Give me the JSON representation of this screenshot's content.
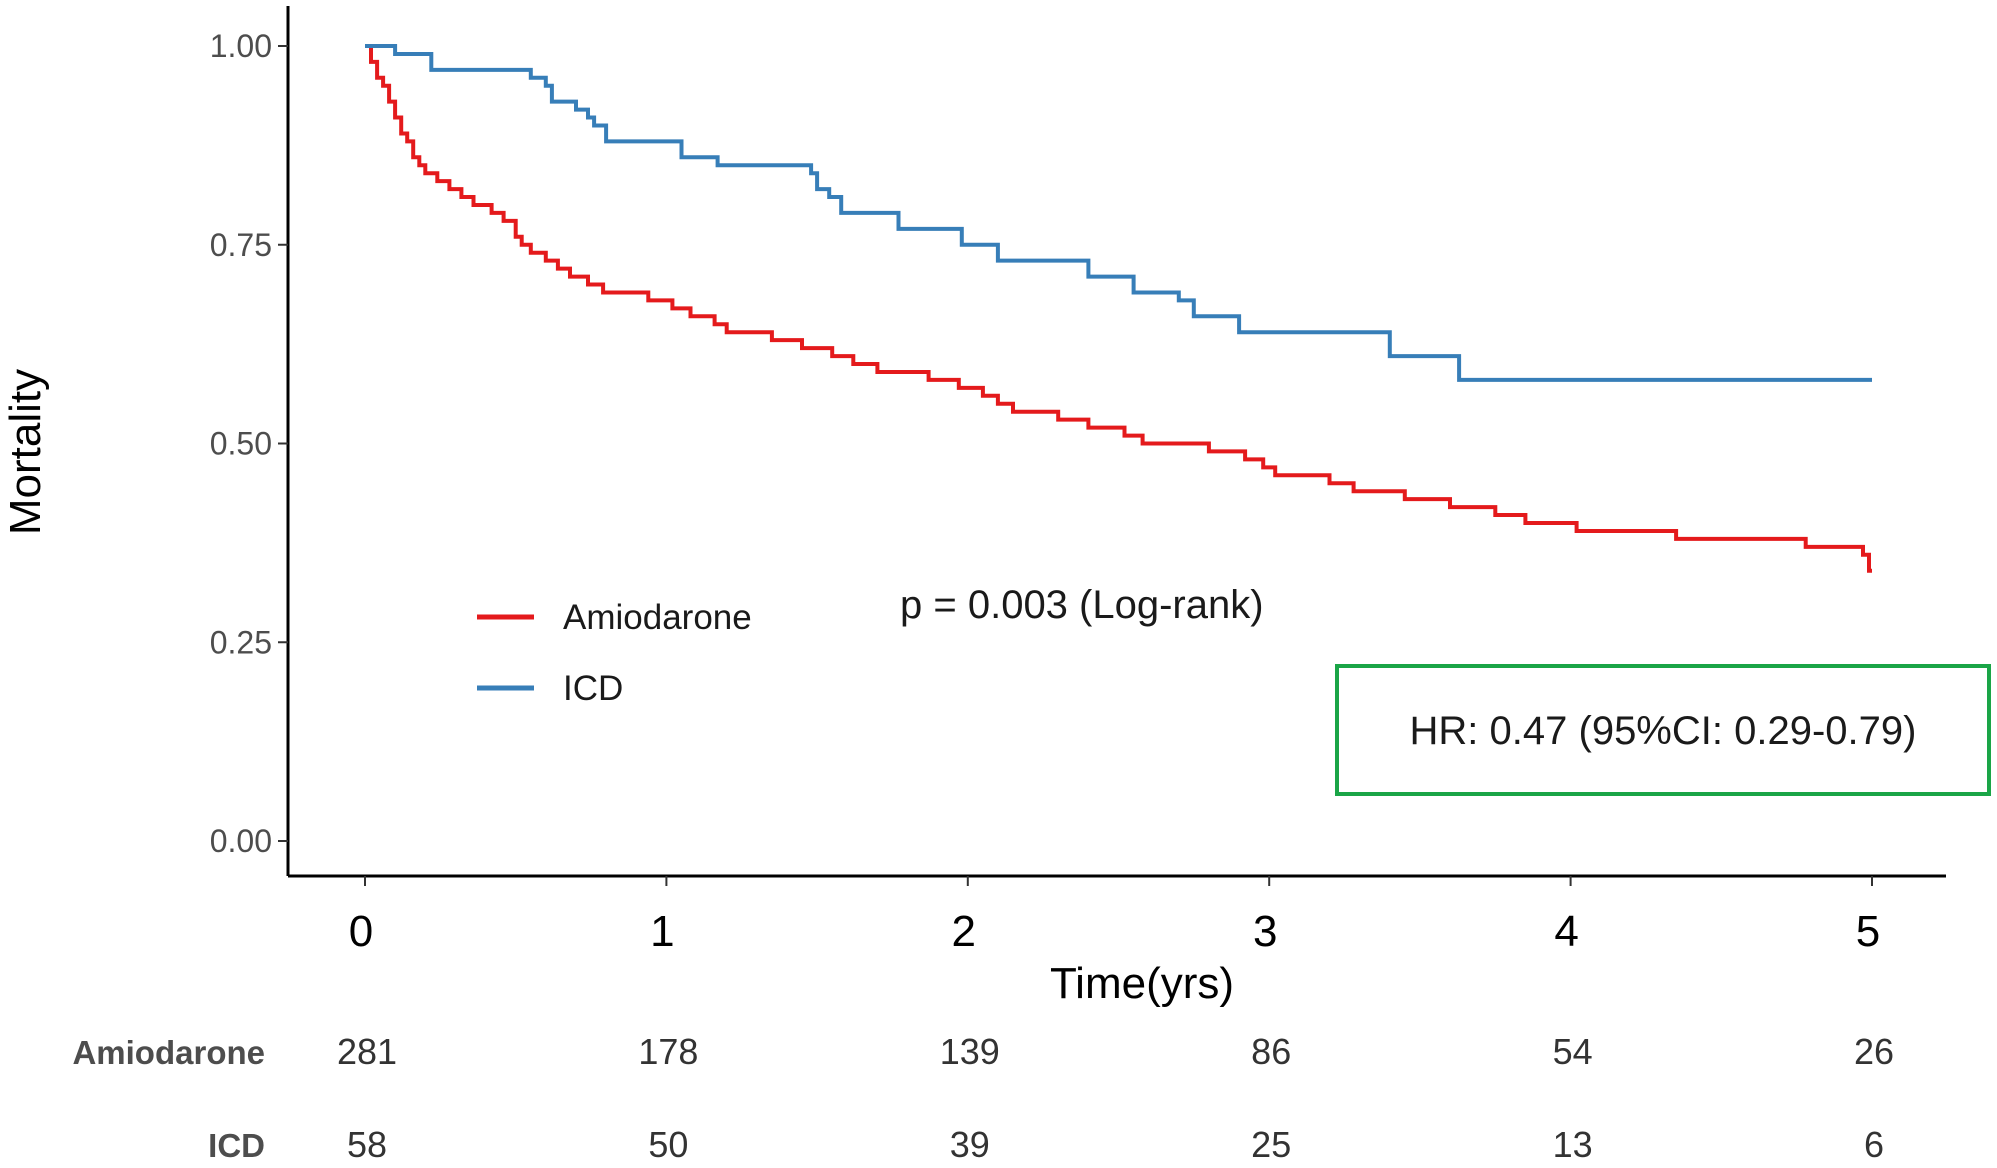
{
  "chart_data": {
    "type": "line",
    "subtype": "kaplan-meier step curve",
    "title": "",
    "xlabel": "Time(yrs)",
    "ylabel": "Mortality",
    "xlim": [
      0,
      5
    ],
    "ylim": [
      0,
      1
    ],
    "x_ticks": [
      "0",
      "1",
      "2",
      "3",
      "4",
      "5"
    ],
    "y_ticks": [
      "0.00",
      "0.25",
      "0.50",
      "0.75",
      "1.00"
    ],
    "grid": false,
    "legend_position": "center-left",
    "series": [
      {
        "name": "Amiodarone",
        "color": "#e41a1c",
        "points": [
          [
            0,
            1.0
          ],
          [
            0.02,
            0.98
          ],
          [
            0.04,
            0.96
          ],
          [
            0.06,
            0.95
          ],
          [
            0.08,
            0.93
          ],
          [
            0.1,
            0.91
          ],
          [
            0.12,
            0.89
          ],
          [
            0.14,
            0.88
          ],
          [
            0.16,
            0.86
          ],
          [
            0.18,
            0.85
          ],
          [
            0.2,
            0.84
          ],
          [
            0.24,
            0.83
          ],
          [
            0.28,
            0.82
          ],
          [
            0.32,
            0.81
          ],
          [
            0.36,
            0.8
          ],
          [
            0.42,
            0.79
          ],
          [
            0.46,
            0.78
          ],
          [
            0.5,
            0.76
          ],
          [
            0.52,
            0.75
          ],
          [
            0.55,
            0.74
          ],
          [
            0.6,
            0.73
          ],
          [
            0.64,
            0.72
          ],
          [
            0.68,
            0.71
          ],
          [
            0.74,
            0.7
          ],
          [
            0.79,
            0.69
          ],
          [
            0.94,
            0.68
          ],
          [
            1.02,
            0.67
          ],
          [
            1.08,
            0.66
          ],
          [
            1.16,
            0.65
          ],
          [
            1.2,
            0.64
          ],
          [
            1.35,
            0.63
          ],
          [
            1.45,
            0.62
          ],
          [
            1.55,
            0.61
          ],
          [
            1.62,
            0.6
          ],
          [
            1.7,
            0.59
          ],
          [
            1.87,
            0.58
          ],
          [
            1.97,
            0.57
          ],
          [
            2.05,
            0.56
          ],
          [
            2.1,
            0.55
          ],
          [
            2.15,
            0.54
          ],
          [
            2.3,
            0.53
          ],
          [
            2.4,
            0.52
          ],
          [
            2.52,
            0.51
          ],
          [
            2.58,
            0.5
          ],
          [
            2.8,
            0.49
          ],
          [
            2.92,
            0.48
          ],
          [
            2.98,
            0.47
          ],
          [
            3.02,
            0.46
          ],
          [
            3.2,
            0.45
          ],
          [
            3.28,
            0.44
          ],
          [
            3.45,
            0.43
          ],
          [
            3.6,
            0.42
          ],
          [
            3.75,
            0.41
          ],
          [
            3.85,
            0.4
          ],
          [
            4.02,
            0.39
          ],
          [
            4.35,
            0.38
          ],
          [
            4.55,
            0.38
          ],
          [
            4.72,
            0.38
          ],
          [
            4.78,
            0.37
          ],
          [
            4.88,
            0.37
          ],
          [
            4.9,
            0.37
          ],
          [
            4.97,
            0.36
          ],
          [
            4.99,
            0.34
          ],
          [
            5.0,
            0.34
          ]
        ]
      },
      {
        "name": "ICD",
        "color": "#377eb8",
        "points": [
          [
            0,
            1.0
          ],
          [
            0.1,
            0.99
          ],
          [
            0.22,
            0.97
          ],
          [
            0.55,
            0.96
          ],
          [
            0.6,
            0.95
          ],
          [
            0.62,
            0.93
          ],
          [
            0.7,
            0.92
          ],
          [
            0.74,
            0.91
          ],
          [
            0.76,
            0.9
          ],
          [
            0.8,
            0.88
          ],
          [
            1.05,
            0.86
          ],
          [
            1.17,
            0.85
          ],
          [
            1.48,
            0.84
          ],
          [
            1.5,
            0.82
          ],
          [
            1.54,
            0.81
          ],
          [
            1.58,
            0.79
          ],
          [
            1.77,
            0.77
          ],
          [
            1.98,
            0.75
          ],
          [
            2.1,
            0.73
          ],
          [
            2.4,
            0.71
          ],
          [
            2.55,
            0.69
          ],
          [
            2.7,
            0.68
          ],
          [
            2.75,
            0.66
          ],
          [
            2.9,
            0.64
          ],
          [
            3.4,
            0.61
          ],
          [
            3.63,
            0.58
          ],
          [
            5.0,
            0.58
          ]
        ]
      }
    ],
    "annotations": {
      "p_value": "p = 0.003 (Log-rank)",
      "hazard_ratio": "HR: 0.47 (95%CI: 0.29-0.79)",
      "hr_box_color": "#1aa547"
    },
    "risk_table": {
      "times": [
        0,
        1,
        2,
        3,
        4,
        5
      ],
      "rows": [
        {
          "label": "Amiodarone",
          "values": [
            "281",
            "178",
            "139",
            "86",
            "54",
            "26"
          ]
        },
        {
          "label": "ICD",
          "values": [
            "58",
            "50",
            "39",
            "25",
            "13",
            "6"
          ]
        }
      ]
    }
  }
}
